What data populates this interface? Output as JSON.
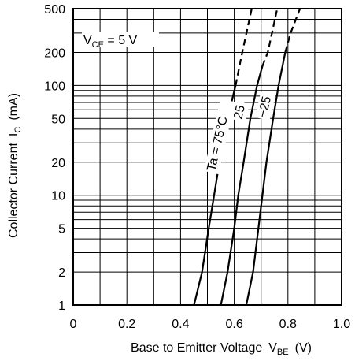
{
  "chart_data": {
    "type": "line",
    "title": "",
    "xlabel": "Base to Emitter Voltage",
    "xlabel_symbol": "V",
    "xlabel_symbol_sub": "BE",
    "xlabel_unit": "(V)",
    "ylabel": "Collector Current",
    "ylabel_symbol": "I",
    "ylabel_symbol_sub": "C",
    "ylabel_unit": "(mA)",
    "xlim": [
      0,
      1.0
    ],
    "ylim": [
      1,
      500
    ],
    "yscale": "log",
    "grid": true,
    "x_ticks": [
      0,
      0.2,
      0.4,
      0.6,
      0.8,
      1.0
    ],
    "x_tick_labels": [
      "0",
      "0.2",
      "0.4",
      "0.6",
      "0.8",
      "1.0"
    ],
    "y_ticks": [
      1,
      2,
      5,
      10,
      20,
      50,
      100,
      200,
      500
    ],
    "y_tick_labels": [
      "1",
      "2",
      "5",
      "10",
      "20",
      "50",
      "100",
      "200",
      "500"
    ],
    "condition": {
      "prefix": "V",
      "sub": "CE",
      "suffix": " = 5 V"
    },
    "series": [
      {
        "name": "Ta = 75°C",
        "solid": [
          [
            0.45,
            1
          ],
          [
            0.48,
            2
          ],
          [
            0.505,
            5
          ],
          [
            0.525,
            10
          ],
          [
            0.545,
            20
          ],
          [
            0.575,
            50
          ],
          [
            0.605,
            100
          ]
        ],
        "dashed": [
          [
            0.605,
            100
          ],
          [
            0.63,
            200
          ],
          [
            0.665,
            500
          ]
        ]
      },
      {
        "name": "25",
        "solid": [
          [
            0.55,
            1
          ],
          [
            0.575,
            2
          ],
          [
            0.6,
            5
          ],
          [
            0.615,
            10
          ],
          [
            0.635,
            20
          ],
          [
            0.66,
            50
          ],
          [
            0.685,
            100
          ],
          [
            0.705,
            150
          ]
        ],
        "dashed": [
          [
            0.705,
            150
          ],
          [
            0.725,
            200
          ],
          [
            0.76,
            500
          ]
        ]
      },
      {
        "name": "−25",
        "solid": [
          [
            0.645,
            1
          ],
          [
            0.67,
            2
          ],
          [
            0.69,
            5
          ],
          [
            0.705,
            10
          ],
          [
            0.72,
            20
          ],
          [
            0.745,
            50
          ],
          [
            0.765,
            100
          ],
          [
            0.79,
            200
          ]
        ],
        "dashed": [
          [
            0.79,
            200
          ],
          [
            0.81,
            300
          ],
          [
            0.845,
            500
          ]
        ]
      }
    ]
  }
}
